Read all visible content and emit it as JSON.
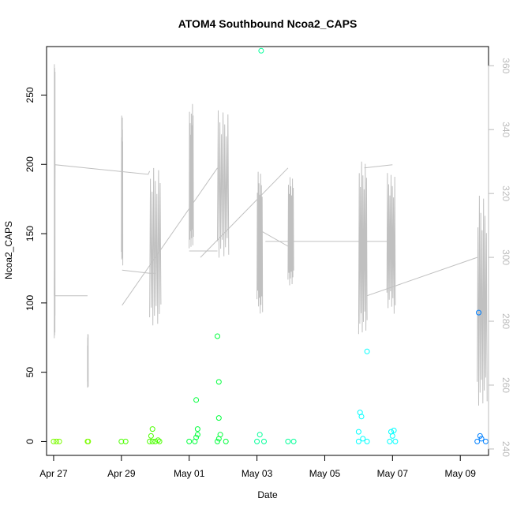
{
  "chart_data": {
    "type": "scatter",
    "title": "ATOM4 Southbound Ncoa2_CAPS",
    "xlabel": "Date",
    "ylabel": "Ncoa2_CAPS",
    "x_ticks": [
      "Apr 27",
      "Apr 29",
      "May 01",
      "May 03",
      "May 05",
      "May 07",
      "May 09"
    ],
    "x_range_days": [
      "Apr 26 19:00",
      "May 09 20:00"
    ],
    "ylim": [
      -10,
      285
    ],
    "y_ticks": [
      0,
      50,
      100,
      150,
      200,
      250
    ],
    "y2_ticks": [
      240,
      260,
      280,
      300,
      320,
      340,
      360
    ],
    "y2lim": [
      238,
      366
    ],
    "y2_color": "#bbbbbb",
    "line_series": {
      "color": "#c0c0c0",
      "axis": "right",
      "bursts": [
        {
          "start": "Apr 27 00:30",
          "end": "Apr 27 01:00",
          "min": 270,
          "max": 364
        },
        {
          "start": "Apr 28 00:00",
          "end": "Apr 28 00:30",
          "min": 258,
          "max": 276
        },
        {
          "start": "Apr 29 00:00",
          "end": "Apr 29 01:00",
          "min": 295,
          "max": 345
        },
        {
          "start": "Apr 29 20:00",
          "end": "Apr 30 04:00",
          "min": 276,
          "max": 330
        },
        {
          "start": "May 01 00:00",
          "end": "May 01 03:00",
          "min": 300,
          "max": 348
        },
        {
          "start": "May 01 20:00",
          "end": "May 02 04:00",
          "min": 296,
          "max": 346
        },
        {
          "start": "May 03 00:00",
          "end": "May 03 04:00",
          "min": 280,
          "max": 328
        },
        {
          "start": "May 03 22:00",
          "end": "May 04 02:00",
          "min": 289,
          "max": 327
        },
        {
          "start": "May 06 00:00",
          "end": "May 06 06:00",
          "min": 272,
          "max": 330
        },
        {
          "start": "May 06 20:00",
          "end": "May 07 02:00",
          "min": 280,
          "max": 327
        },
        {
          "start": "May 09 12:00",
          "end": "May 09 19:00",
          "min": 250,
          "max": 322
        }
      ],
      "connectors": [
        [
          [
            "Apr 27 00:30",
            288
          ],
          [
            "Apr 27 01:00",
            329
          ],
          [
            "Apr 29 19:00",
            326
          ],
          [
            "Apr 29 20:00",
            327
          ]
        ],
        [
          [
            "Apr 27 00:30",
            288
          ],
          [
            "Apr 28 00:00",
            288
          ]
        ],
        [
          [
            "Apr 29 00:30",
            296
          ],
          [
            "Apr 29 20:00",
            295
          ],
          [
            "Apr 30 00:00",
            295
          ]
        ],
        [
          [
            "Apr 29 00:30",
            285
          ],
          [
            "May 01 20:00",
            328
          ]
        ],
        [
          [
            "May 01 00:00",
            302
          ],
          [
            "May 01 20:00",
            302
          ]
        ],
        [
          [
            "May 01 08:00",
            300
          ],
          [
            "May 03 22:00",
            328
          ]
        ],
        [
          [
            "May 03 00:00",
            309
          ],
          [
            "May 04 00:00",
            303
          ]
        ],
        [
          [
            "May 03 06:00",
            305
          ],
          [
            "May 07 00:00",
            305
          ]
        ],
        [
          [
            "May 06 04:00",
            328
          ],
          [
            "May 07 00:00",
            329
          ]
        ],
        [
          [
            "May 06 06:00",
            288
          ],
          [
            "May 09 12:00",
            300
          ]
        ]
      ]
    },
    "series": [
      {
        "color": "#7cfc00",
        "points": [
          [
            "Apr 27 00:00",
            0
          ],
          [
            "Apr 27 02:00",
            0
          ],
          [
            "Apr 27 04:00",
            0
          ],
          [
            "Apr 28 00:00",
            0
          ],
          [
            "Apr 28 00:30",
            0
          ]
        ]
      },
      {
        "color": "#4cff00",
        "points": [
          [
            "Apr 29 00:00",
            0
          ],
          [
            "Apr 29 03:00",
            0
          ],
          [
            "Apr 29 20:00",
            0
          ],
          [
            "Apr 29 22:00",
            0
          ],
          [
            "Apr 30 00:00",
            0
          ],
          [
            "Apr 30 03:00",
            0
          ],
          [
            "Apr 29 21:00",
            4
          ],
          [
            "Apr 29 22:00",
            9
          ],
          [
            "Apr 30 02:00",
            1
          ]
        ]
      },
      {
        "color": "#00ff3c",
        "points": [
          [
            "May 01 00:00",
            0
          ],
          [
            "May 01 04:00",
            0
          ],
          [
            "May 01 05:00",
            3
          ],
          [
            "May 01 06:00",
            5
          ],
          [
            "May 01 06:00",
            9
          ],
          [
            "May 01 05:00",
            30
          ],
          [
            "May 01 20:00",
            0
          ],
          [
            "May 02 02:00",
            0
          ],
          [
            "May 01 20:00",
            76
          ],
          [
            "May 01 21:00",
            43
          ],
          [
            "May 01 21:00",
            17
          ],
          [
            "May 01 22:00",
            5
          ],
          [
            "May 01 21:00",
            2
          ]
        ]
      },
      {
        "color": "#00ff99",
        "points": [
          [
            "May 03 00:00",
            0
          ],
          [
            "May 03 05:00",
            0
          ],
          [
            "May 03 02:00",
            5
          ],
          [
            "May 03 03:00",
            282
          ],
          [
            "May 03 22:00",
            0
          ],
          [
            "May 04 02:00",
            0
          ]
        ]
      },
      {
        "color": "#00ffff",
        "points": [
          [
            "May 06 00:00",
            0
          ],
          [
            "May 06 06:00",
            0
          ],
          [
            "May 06 00:00",
            7
          ],
          [
            "May 06 01:00",
            21
          ],
          [
            "May 06 02:00",
            18
          ],
          [
            "May 06 06:00",
            65
          ],
          [
            "May 06 03:00",
            2
          ],
          [
            "May 06 22:00",
            0
          ],
          [
            "May 07 02:00",
            0
          ],
          [
            "May 06 23:00",
            7
          ],
          [
            "May 07 00:00",
            4
          ],
          [
            "May 07 01:00",
            8
          ]
        ]
      },
      {
        "color": "#0080ff",
        "points": [
          [
            "May 09 12:00",
            0
          ],
          [
            "May 09 18:00",
            0
          ],
          [
            "May 09 13:00",
            93
          ],
          [
            "May 09 14:00",
            4
          ],
          [
            "May 09 15:00",
            2
          ]
        ]
      }
    ]
  }
}
